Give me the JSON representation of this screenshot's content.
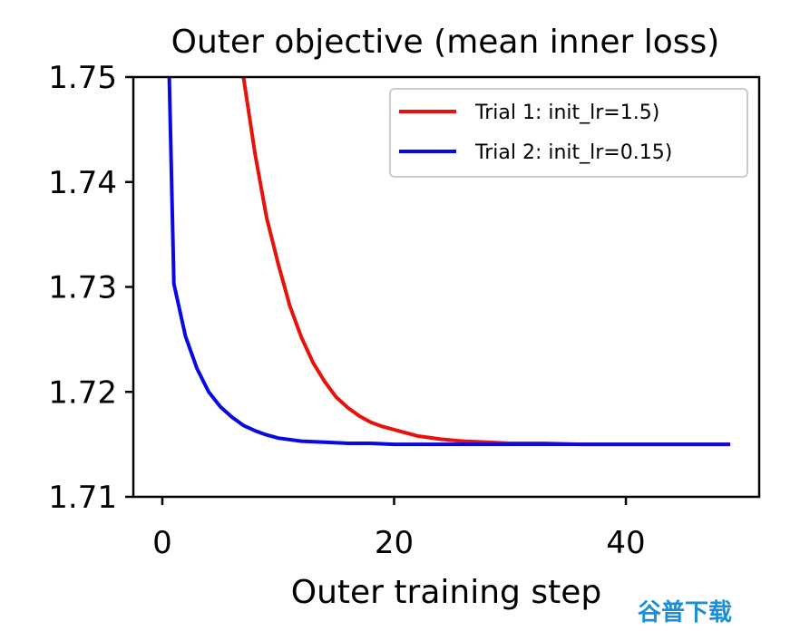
{
  "chart_data": {
    "type": "line",
    "title": "Outer objective (mean inner loss)",
    "xlabel": "Outer training step",
    "ylabel": "",
    "xlim": [
      -2.5,
      51.5
    ],
    "ylim": [
      1.71,
      1.75
    ],
    "xticks": [
      0,
      20,
      40
    ],
    "xtick_labels": [
      "0",
      "20",
      "40"
    ],
    "yticks": [
      1.71,
      1.72,
      1.73,
      1.74,
      1.75
    ],
    "ytick_labels": [
      "1.71",
      "1.72",
      "1.73",
      "1.74",
      "1.75"
    ],
    "grid": false,
    "legend_position": "top-right",
    "series": [
      {
        "name": "Trial 1: init_lr=1.5)",
        "color": "#e8120c",
        "x": [
          7,
          8,
          9,
          10,
          11,
          12,
          13,
          14,
          15,
          16,
          17,
          18,
          19,
          20,
          22,
          24,
          26,
          28,
          30,
          33,
          36,
          40,
          45,
          49
        ],
        "y": [
          1.75,
          1.7427,
          1.7366,
          1.7322,
          1.7282,
          1.7252,
          1.7228,
          1.721,
          1.7195,
          1.7185,
          1.7177,
          1.7171,
          1.7167,
          1.7164,
          1.7158,
          1.7155,
          1.7153,
          1.7152,
          1.7151,
          1.7151,
          1.715,
          1.715,
          1.715,
          1.715
        ]
      },
      {
        "name": "Trial 2: init_lr=0.15)",
        "color": "#0a0ae0",
        "x": [
          0.6,
          1,
          2,
          3,
          4,
          5,
          6,
          7,
          8,
          9,
          10,
          12,
          14,
          16,
          18,
          20,
          25,
          30,
          35,
          40,
          45,
          49
        ],
        "y": [
          1.75,
          1.7303,
          1.7253,
          1.7222,
          1.72,
          1.7186,
          1.7176,
          1.7168,
          1.7163,
          1.7159,
          1.7156,
          1.7153,
          1.7152,
          1.7151,
          1.7151,
          1.715,
          1.715,
          1.715,
          1.715,
          1.715,
          1.715,
          1.715
        ]
      }
    ]
  },
  "watermark": {
    "text": "谷普下载"
  }
}
